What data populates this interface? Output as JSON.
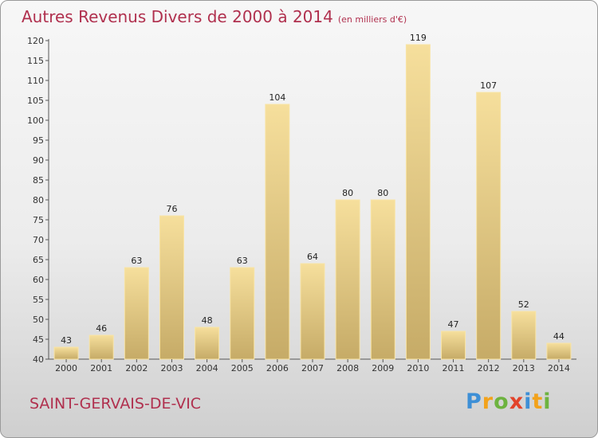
{
  "chart_data": {
    "type": "bar",
    "title": "Autres Revenus Divers de 2000 à 2014",
    "subtitle": "(en milliers d'€)",
    "categories": [
      "2000",
      "2001",
      "2002",
      "2003",
      "2004",
      "2005",
      "2006",
      "2007",
      "2008",
      "2009",
      "2010",
      "2011",
      "2012",
      "2013",
      "2014"
    ],
    "values": [
      43,
      46,
      63,
      76,
      48,
      63,
      104,
      64,
      80,
      80,
      119,
      47,
      107,
      52,
      44
    ],
    "ylim": [
      40,
      120
    ],
    "yticks": [
      40,
      45,
      50,
      55,
      60,
      65,
      70,
      75,
      80,
      85,
      90,
      95,
      100,
      105,
      110,
      115,
      120
    ],
    "grid": false,
    "bar_color": "#e3c47c"
  },
  "footer": {
    "location": "SAINT-GERVAIS-DE-VIC",
    "logo": {
      "letters": [
        "P",
        "r",
        "o",
        "x",
        "i",
        "t",
        "i"
      ],
      "colors": [
        "#3d8fd6",
        "#f2a21b",
        "#6db33f",
        "#e2432a",
        "#3d8fd6",
        "#f2a21b",
        "#6db33f"
      ]
    }
  }
}
